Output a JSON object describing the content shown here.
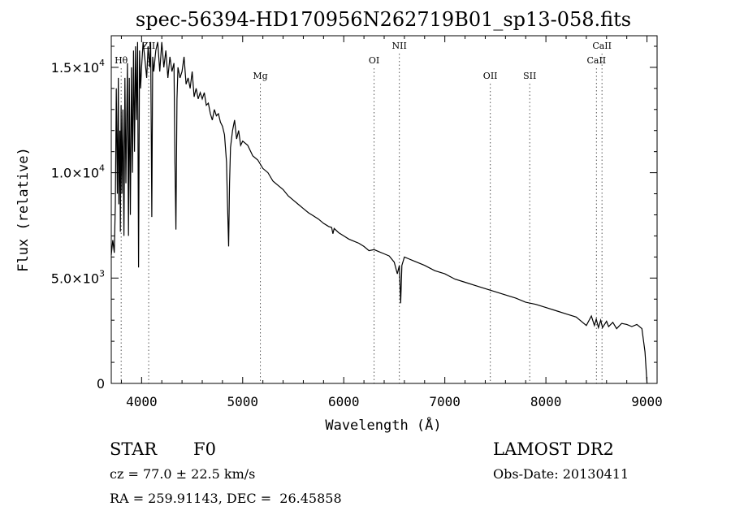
{
  "chart_data": {
    "type": "line",
    "title": "spec-56394-HD170956N262719B01_sp13-058.fits",
    "xlabel": "Wavelength (Å)",
    "ylabel": "Flux (relative)",
    "xlim": [
      3700,
      9100
    ],
    "ylim": [
      0,
      16500
    ],
    "grid": false,
    "x_ticks": [
      4000,
      5000,
      6000,
      7000,
      8000,
      9000
    ],
    "x_tick_labels": [
      "4000",
      "5000",
      "6000",
      "7000",
      "8000",
      "9000"
    ],
    "y_ticks": [
      0,
      5000,
      10000,
      15000
    ],
    "y_tick_labels": [
      {
        "mantissa": "0",
        "exponent": ""
      },
      {
        "mantissa": "5.0×10",
        "exponent": "3"
      },
      {
        "mantissa": "1.0×10",
        "exponent": "4"
      },
      {
        "mantissa": "1.5×10",
        "exponent": "4"
      }
    ],
    "series": [
      {
        "x": [
          3700,
          3715,
          3730,
          3740,
          3750,
          3760,
          3770,
          3775,
          3785,
          3790,
          3797,
          3805,
          3815,
          3825,
          3835,
          3845,
          3860,
          3870,
          3878,
          3889,
          3900,
          3910,
          3920,
          3930,
          3940,
          3950,
          3960,
          3970,
          3980,
          3990,
          4000,
          4015,
          4030,
          4050,
          4065,
          4080,
          4090,
          4101,
          4110,
          4120,
          4140,
          4160,
          4180,
          4200,
          4220,
          4240,
          4260,
          4280,
          4300,
          4320,
          4330,
          4340,
          4350,
          4360,
          4380,
          4400,
          4420,
          4440,
          4460,
          4480,
          4500,
          4520,
          4540,
          4560,
          4580,
          4600,
          4620,
          4640,
          4660,
          4680,
          4700,
          4720,
          4740,
          4760,
          4780,
          4800,
          4820,
          4840,
          4850,
          4861,
          4870,
          4880,
          4900,
          4920,
          4940,
          4960,
          4980,
          5000,
          5050,
          5100,
          5150,
          5200,
          5250,
          5300,
          5350,
          5400,
          5450,
          5500,
          5550,
          5600,
          5650,
          5700,
          5750,
          5800,
          5850,
          5880,
          5893,
          5905,
          5950,
          6000,
          6050,
          6100,
          6150,
          6200,
          6250,
          6300,
          6350,
          6400,
          6450,
          6500,
          6530,
          6550,
          6563,
          6575,
          6600,
          6650,
          6700,
          6800,
          6900,
          7000,
          7100,
          7200,
          7300,
          7400,
          7500,
          7600,
          7700,
          7800,
          7900,
          8000,
          8100,
          8200,
          8300,
          8400,
          8450,
          8480,
          8498,
          8520,
          8542,
          8560,
          8600,
          8620,
          8662,
          8700,
          8750,
          8800,
          8850,
          8900,
          8950,
          8980,
          9000
        ],
        "y": [
          6100,
          6800,
          6200,
          8500,
          14000,
          9000,
          14500,
          8500,
          12000,
          7200,
          13200,
          9000,
          13000,
          7000,
          14500,
          9500,
          15200,
          7000,
          14500,
          8000,
          15000,
          10000,
          15800,
          11000,
          16000,
          12500,
          16200,
          5500,
          15800,
          14000,
          15000,
          16200,
          15500,
          14500,
          16000,
          15000,
          16200,
          7900,
          15500,
          14800,
          15800,
          16200,
          14800,
          16200,
          15000,
          15800,
          14500,
          15500,
          14800,
          15200,
          10500,
          7300,
          13500,
          15000,
          14500,
          14800,
          15500,
          14200,
          14500,
          14000,
          14800,
          13600,
          14000,
          13500,
          13800,
          13500,
          13800,
          13200,
          13300,
          12800,
          12500,
          13000,
          12700,
          12800,
          12400,
          12200,
          11800,
          10500,
          8500,
          6500,
          9500,
          11200,
          12000,
          12500,
          11600,
          12000,
          11300,
          11500,
          11300,
          10800,
          10600,
          10200,
          10000,
          9600,
          9400,
          9200,
          8900,
          8700,
          8500,
          8300,
          8100,
          7950,
          7800,
          7600,
          7450,
          7400,
          7100,
          7350,
          7150,
          7000,
          6850,
          6750,
          6650,
          6500,
          6300,
          6350,
          6250,
          6150,
          6050,
          5750,
          5200,
          5600,
          3800,
          5600,
          6000,
          5900,
          5800,
          5600,
          5350,
          5200,
          4950,
          4800,
          4650,
          4500,
          4350,
          4200,
          4050,
          3850,
          3750,
          3600,
          3450,
          3300,
          3150,
          2750,
          3200,
          2750,
          3050,
          2650,
          3000,
          2650,
          2950,
          2700,
          2900,
          2600,
          2850,
          2800,
          2700,
          2800,
          2600,
          1500,
          0
        ]
      }
    ],
    "line_markers": [
      {
        "label": "Hθ",
        "wavelength": 3798,
        "level": 1
      },
      {
        "label": "ZII",
        "wavelength": 4070,
        "level": 0
      },
      {
        "label": "Mg",
        "wavelength": 5175,
        "level": 2
      },
      {
        "label": "OI",
        "wavelength": 6300,
        "level": 1
      },
      {
        "label": "NII",
        "wavelength": 6550,
        "level": 0
      },
      {
        "label": "OII",
        "wavelength": 7450,
        "level": 2
      },
      {
        "label": "SII",
        "wavelength": 7840,
        "level": 2
      },
      {
        "label": "CaII",
        "wavelength": 8500,
        "level": 1
      },
      {
        "label": "CaII",
        "wavelength": 8555,
        "level": 0
      }
    ]
  },
  "footer": {
    "object_type": "STAR",
    "subclass": "F0",
    "survey": "LAMOST DR2",
    "redshift": "cz = 77.0 ± 22.5 km/s",
    "obs_date": "Obs-Date: 20130411",
    "coords": "RA = 259.91143, DEC =  26.45858"
  }
}
